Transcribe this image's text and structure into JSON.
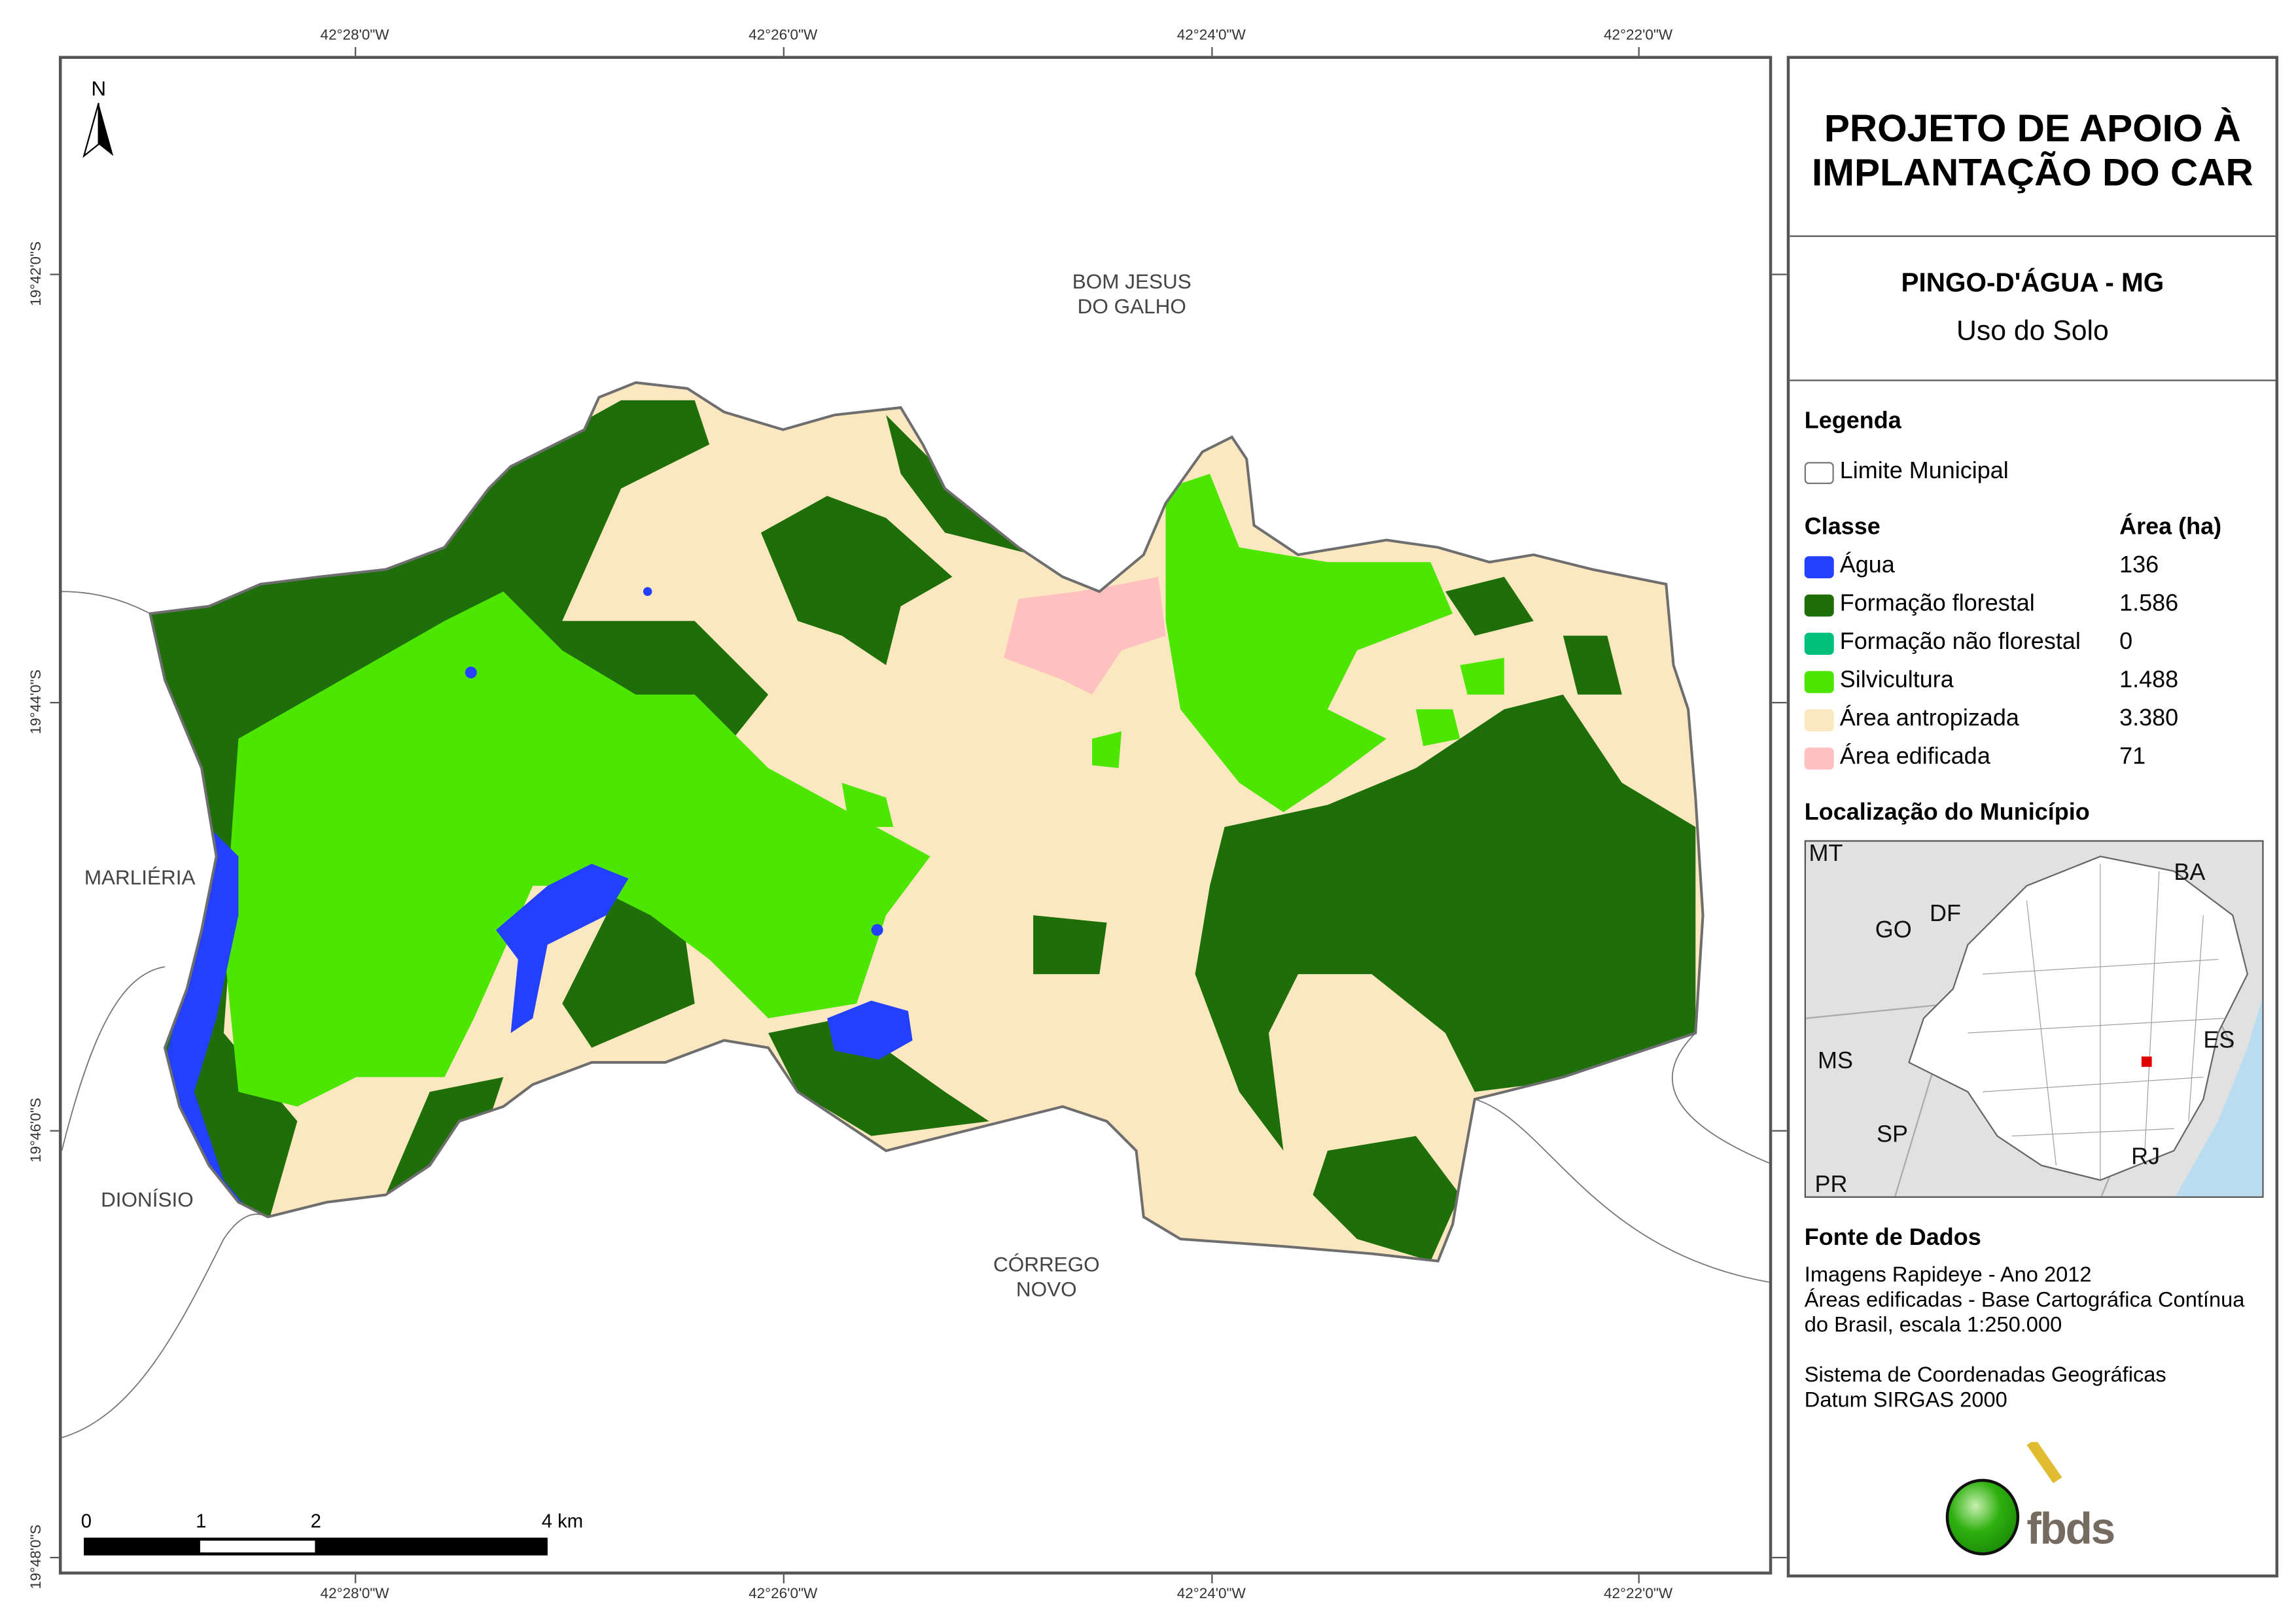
{
  "map": {
    "coordinates": {
      "longitude": [
        "42°28'0\"W",
        "42°26'0\"W",
        "42°24'0\"W",
        "42°22'0\"W"
      ],
      "latitude": [
        "19°42'0\"S",
        "19°44'0\"S",
        "19°46'0\"S",
        "19°48'0\"S"
      ]
    },
    "north_label": "N",
    "neighbors": {
      "bom_jesus_line1": "BOM JESUS",
      "bom_jesus_line2": "DO GALHO",
      "marlieria": "MARLIÉRIA",
      "dionisio": "DIONÍSIO",
      "corrego_line1": "CÓRREGO",
      "corrego_line2": "NOVO"
    },
    "scale_bar": {
      "labels": [
        "0",
        "1",
        "2",
        "4 km"
      ]
    }
  },
  "panel": {
    "title_line1": "PROJETO DE APOIO À",
    "title_line2": "IMPLANTAÇÃO DO CAR",
    "municipality": "PINGO-D'ÁGUA - MG",
    "theme": "Uso do Solo",
    "legend": {
      "heading": "Legenda",
      "boundary_label": "Limite Municipal",
      "class_header": "Classe",
      "area_header": "Área (ha)",
      "items": [
        {
          "label": "Água",
          "area": "136",
          "color": "#2440FF"
        },
        {
          "label": "Formação florestal",
          "area": "1.586",
          "color": "#1E6E0A"
        },
        {
          "label": "Formação não florestal",
          "area": "0",
          "color": "#00BF7A"
        },
        {
          "label": "Silvicultura",
          "area": "1.488",
          "color": "#4CE600"
        },
        {
          "label": "Área antropizada",
          "area": "3.380",
          "color": "#FCE8C0"
        },
        {
          "label": "Área edificada",
          "area": "71",
          "color": "#FFC0C0"
        }
      ]
    },
    "location": {
      "heading": "Localização do Município",
      "states": [
        "MT",
        "BA",
        "GO",
        "DF",
        "MS",
        "ES",
        "SP",
        "RJ",
        "PR"
      ]
    },
    "sources": {
      "heading": "Fonte de Dados",
      "lines": [
        "Imagens Rapideye - Ano 2012",
        "Áreas edificadas - Base Cartográfica Contínua",
        "do Brasil, escala 1:250.000",
        "Sistema de Coordenadas Geográficas",
        "Datum SIRGAS 2000"
      ]
    },
    "logo_text": "fbds"
  }
}
